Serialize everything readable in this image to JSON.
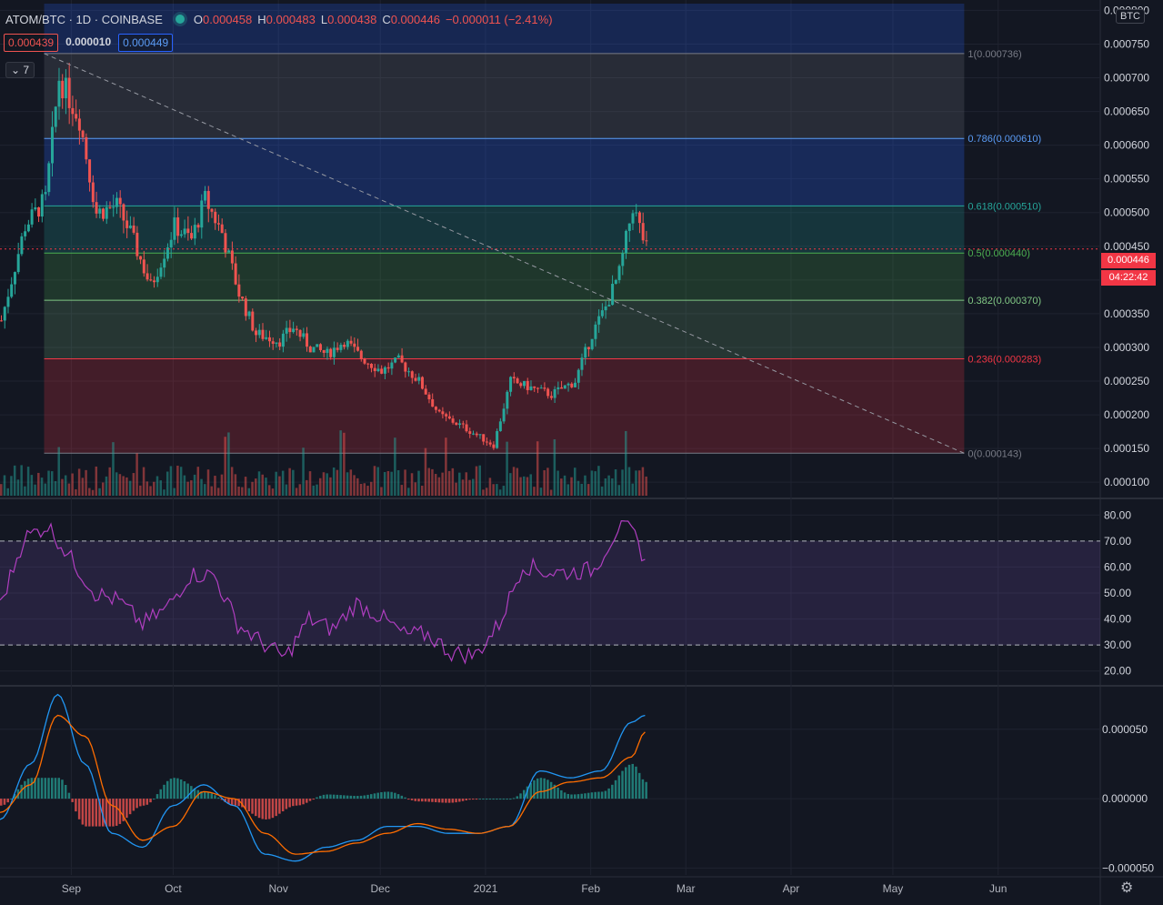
{
  "header": {
    "symbol": "ATOM/BTC · 1D · COINBASE",
    "o_label": "O",
    "o_value": "0.000458",
    "h_label": "H",
    "h_value": "0.000483",
    "l_label": "L",
    "l_value": "0.000438",
    "c_label": "C",
    "c_value": "0.000446",
    "change": "−0.000011 (−2.41%)",
    "bid": "0.000439",
    "spread": "0.000010",
    "ask": "0.000449",
    "collapse_label": "7"
  },
  "price_axis": {
    "unit": "BTC",
    "labels": [
      "0.000800",
      "0.000750",
      "0.000700",
      "0.000650",
      "0.000600",
      "0.000550",
      "0.000500",
      "0.000450",
      "0.000400",
      "0.000350",
      "0.000300",
      "0.000250",
      "0.000200",
      "0.000150",
      "0.000100"
    ],
    "current_price": "0.000446",
    "countdown": "04:22:42"
  },
  "rsi_axis": {
    "labels": [
      "80.00",
      "70.00",
      "60.00",
      "50.00",
      "40.00",
      "30.00",
      "20.00"
    ]
  },
  "macd_axis": {
    "labels": [
      "0.000050",
      "0.000000",
      "−0.000050"
    ]
  },
  "time_axis": {
    "labels": [
      "Sep",
      "Oct",
      "Nov",
      "Dec",
      "2021",
      "Feb",
      "Mar",
      "Apr",
      "May",
      "Jun"
    ]
  },
  "colors": {
    "up": "#26a69a",
    "down": "#ef5350",
    "background": "#131722",
    "rsi_line": "#b03ec0",
    "macd_line": "#2196f3",
    "signal_line": "#ff6d00"
  },
  "chart_data": [
    {
      "type": "candlestick",
      "title": "ATOM/BTC 1D COINBASE",
      "ylim": [
        8e-05,
        0.00081
      ],
      "y_scale": "linear",
      "grid": true,
      "x_range": [
        "2020-08-11",
        "2021-06-15"
      ],
      "series": [
        {
          "name": "close_approx",
          "x": [
            "2020-08-11",
            "2020-08-18",
            "2020-08-24",
            "2020-08-28",
            "2020-09-03",
            "2020-09-08",
            "2020-09-14",
            "2020-09-18",
            "2020-09-24",
            "2020-10-01",
            "2020-10-06",
            "2020-10-10",
            "2020-10-15",
            "2020-10-20",
            "2020-10-25",
            "2020-11-01",
            "2020-11-05",
            "2020-11-10",
            "2020-11-15",
            "2020-11-20",
            "2020-11-25",
            "2020-12-01",
            "2020-12-06",
            "2020-12-12",
            "2020-12-18",
            "2020-12-24",
            "2020-12-29",
            "2021-01-03",
            "2021-01-08",
            "2021-01-14",
            "2021-01-20",
            "2021-01-27",
            "2021-02-01",
            "2021-02-05",
            "2021-02-09",
            "2021-02-13",
            "2021-02-17"
          ],
          "values": [
            0.00034,
            0.00048,
            0.00052,
            0.0007,
            0.00064,
            0.0005,
            0.00051,
            0.00047,
            0.00039,
            0.00048,
            0.00046,
            0.00052,
            0.00047,
            0.00038,
            0.00032,
            0.00031,
            0.00033,
            0.0003,
            0.00029,
            0.00031,
            0.000285,
            0.000265,
            0.00028,
            0.00025,
            0.0002,
            0.000185,
            0.00017,
            0.000155,
            0.00025,
            0.00024,
            0.00023,
            0.00025,
            0.00032,
            0.00036,
            0.00041,
            0.00051,
            0.000446
          ]
        }
      ],
      "fibonacci": {
        "levels": [
          {
            "ratio": "1",
            "price": 0.000736,
            "label": "1(0.000736)",
            "color": "#787b86"
          },
          {
            "ratio": "0.786",
            "price": 0.00061,
            "label": "0.786(0.000610)",
            "color": "#5b9cf6"
          },
          {
            "ratio": "0.618",
            "price": 0.00051,
            "label": "0.618(0.000510)",
            "color": "#26a69a"
          },
          {
            "ratio": "0.5",
            "price": 0.00044,
            "label": "0.5(0.000440)",
            "color": "#4caf50"
          },
          {
            "ratio": "0.382",
            "price": 0.00037,
            "label": "0.382(0.000370)",
            "color": "#81c784"
          },
          {
            "ratio": "0.236",
            "price": 0.000283,
            "label": "0.236(0.000283)",
            "color": "#f23645"
          },
          {
            "ratio": "0",
            "price": 0.000143,
            "label": "0(0.000143)",
            "color": "#787b86"
          }
        ],
        "start_date": "2020-08-24",
        "end_date": "2021-05-22"
      },
      "trendline": {
        "from": [
          "2020-08-24",
          0.000736
        ],
        "to": [
          "2021-05-22",
          0.000143
        ]
      }
    },
    {
      "type": "line",
      "title": "RSI",
      "ylim": [
        15,
        85
      ],
      "bands": [
        30,
        70
      ],
      "series": [
        {
          "name": "RSI",
          "x": [
            "2020-08-11",
            "2020-08-18",
            "2020-08-25",
            "2020-09-01",
            "2020-09-08",
            "2020-09-15",
            "2020-09-22",
            "2020-09-29",
            "2020-10-06",
            "2020-10-13",
            "2020-10-20",
            "2020-10-27",
            "2020-11-03",
            "2020-11-10",
            "2020-11-17",
            "2020-11-24",
            "2020-12-01",
            "2020-12-08",
            "2020-12-15",
            "2020-12-22",
            "2020-12-29",
            "2021-01-05",
            "2021-01-12",
            "2021-01-19",
            "2021-01-26",
            "2021-02-02",
            "2021-02-09",
            "2021-02-13",
            "2021-02-17"
          ],
          "values": [
            45,
            71,
            76,
            63,
            50,
            47,
            38,
            44,
            57,
            57,
            38,
            31,
            25,
            40,
            36,
            46,
            41,
            34,
            34,
            27,
            26,
            38,
            61,
            58,
            58,
            59,
            75,
            74,
            63
          ]
        }
      ]
    },
    {
      "type": "line",
      "title": "MACD",
      "ylim": [
        -5.5e-05,
        8e-05
      ],
      "series": [
        {
          "name": "MACD",
          "x": [
            "2020-08-11",
            "2020-08-20",
            "2020-08-28",
            "2020-09-05",
            "2020-09-13",
            "2020-09-22",
            "2020-10-01",
            "2020-10-10",
            "2020-10-19",
            "2020-10-28",
            "2020-11-06",
            "2020-11-15",
            "2020-11-24",
            "2020-12-03",
            "2020-12-12",
            "2020-12-21",
            "2020-12-30",
            "2021-01-08",
            "2021-01-17",
            "2021-01-26",
            "2021-02-04",
            "2021-02-13",
            "2021-02-17"
          ],
          "values": [
            -1.5e-05,
            2.5e-05,
            7.5e-05,
            2.5e-05,
            -2.5e-05,
            -3.5e-05,
            -5e-06,
            1e-05,
            -5e-06,
            -4e-05,
            -4.5e-05,
            -3.5e-05,
            -3e-05,
            -2e-05,
            -2e-05,
            -2.5e-05,
            -2.5e-05,
            -2e-05,
            2e-05,
            1.5e-05,
            2e-05,
            5.5e-05,
            6e-05
          ]
        },
        {
          "name": "Signal",
          "x": [
            "2020-08-11",
            "2020-08-20",
            "2020-08-28",
            "2020-09-05",
            "2020-09-13",
            "2020-09-22",
            "2020-10-01",
            "2020-10-10",
            "2020-10-19",
            "2020-10-28",
            "2020-11-06",
            "2020-11-15",
            "2020-11-24",
            "2020-12-03",
            "2020-12-12",
            "2020-12-21",
            "2020-12-30",
            "2021-01-08",
            "2021-01-17",
            "2021-01-26",
            "2021-02-04",
            "2021-02-13",
            "2021-02-17"
          ],
          "values": [
            -1e-05,
            1e-05,
            6e-05,
            4.5e-05,
            -5e-06,
            -3e-05,
            -2e-05,
            5e-06,
            0.0,
            -2.5e-05,
            -4e-05,
            -3.8e-05,
            -3.2e-05,
            -2.5e-05,
            -1.8e-05,
            -2.2e-05,
            -2.5e-05,
            -2e-05,
            5e-06,
            1.2e-05,
            1.5e-05,
            3e-05,
            4.8e-05
          ]
        }
      ]
    }
  ]
}
